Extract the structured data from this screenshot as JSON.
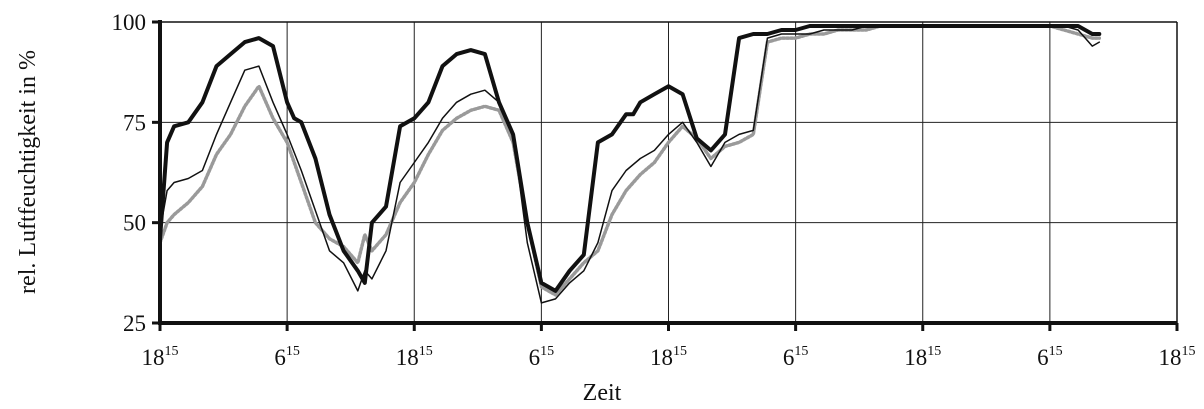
{
  "chart_data": {
    "type": "line",
    "xlabel": "Zeit",
    "ylabel": "rel. Luftfeuchtigkeit in %",
    "ylim": [
      25,
      100
    ],
    "yticks": [
      "25",
      "50",
      "75",
      "100"
    ],
    "xlim": [
      0,
      72
    ],
    "xticks": [
      {
        "main": "18",
        "sup": "15"
      },
      {
        "main": "6",
        "sup": "15"
      },
      {
        "main": "18",
        "sup": "15"
      },
      {
        "main": "6",
        "sup": "15"
      },
      {
        "main": "18",
        "sup": "15"
      },
      {
        "main": "6",
        "sup": "15"
      },
      {
        "main": "18",
        "sup": "15"
      },
      {
        "main": "6",
        "sup": "15"
      },
      {
        "main": "18",
        "sup": "15"
      }
    ],
    "grid": true,
    "legend": "none",
    "series": [
      {
        "style": "thick",
        "color": "#111111",
        "x": [
          0,
          0.5,
          1,
          2,
          3,
          4,
          5,
          6,
          7,
          8,
          9,
          9.5,
          10,
          11,
          12,
          13,
          14,
          14.5,
          15,
          16,
          17,
          18,
          19,
          20,
          21,
          22,
          23,
          24,
          25,
          26,
          27,
          28,
          29,
          30,
          31,
          32,
          33,
          33.5,
          34,
          35,
          36,
          37,
          38,
          39,
          40,
          41,
          42,
          43,
          44,
          45,
          46,
          46.5,
          47,
          47.5,
          48,
          49,
          50,
          51,
          52,
          53,
          54,
          55,
          56,
          57,
          58,
          59,
          60,
          61,
          62,
          63,
          64,
          65,
          66,
          66.5
        ],
        "values": [
          46,
          70,
          74,
          75,
          80,
          89,
          92,
          95,
          96,
          94,
          80,
          76,
          75,
          66,
          52,
          43,
          38,
          35,
          50,
          54,
          74,
          76,
          80,
          89,
          92,
          93,
          92,
          80,
          72,
          50,
          35,
          33,
          38,
          42,
          70,
          72,
          77,
          77,
          80,
          82,
          84,
          82,
          71,
          68,
          72,
          96,
          97,
          97,
          98,
          98,
          99,
          99,
          99,
          99,
          99,
          99,
          99,
          99,
          99,
          99,
          99,
          99,
          99,
          99,
          99,
          99,
          99,
          99,
          99,
          99,
          99,
          99,
          97,
          97
        ]
      },
      {
        "style": "thin",
        "color": "#111111",
        "x": [
          0,
          0.5,
          1,
          2,
          3,
          4,
          5,
          6,
          7,
          8,
          9,
          10,
          11,
          12,
          13,
          14,
          14.5,
          15,
          16,
          17,
          18,
          19,
          20,
          21,
          22,
          23,
          24,
          25,
          26,
          27,
          28,
          29,
          30,
          31,
          32,
          33,
          34,
          35,
          36,
          37,
          38,
          39,
          40,
          41,
          42,
          43,
          44,
          45,
          46,
          47,
          48,
          49,
          50,
          51,
          52,
          53,
          54,
          55,
          56,
          57,
          58,
          59,
          60,
          61,
          62,
          63,
          64,
          65,
          66,
          66.5
        ],
        "values": [
          48,
          58,
          60,
          61,
          63,
          72,
          80,
          88,
          89,
          80,
          72,
          63,
          53,
          43,
          40,
          33,
          38,
          36,
          43,
          60,
          65,
          70,
          76,
          80,
          82,
          83,
          80,
          72,
          45,
          30,
          31,
          35,
          38,
          45,
          58,
          63,
          66,
          68,
          72,
          75,
          70,
          64,
          70,
          72,
          73,
          96,
          97,
          97,
          97,
          98,
          98,
          98,
          99,
          99,
          99,
          99,
          99,
          99,
          99,
          99,
          99,
          99,
          99,
          99,
          99,
          99,
          99,
          98,
          94,
          95
        ]
      },
      {
        "style": "dotted",
        "color": "#9a9a9a",
        "x": [
          0,
          0.5,
          1,
          2,
          3,
          4,
          5,
          6,
          7,
          8,
          9,
          10,
          11,
          12,
          13,
          14,
          14.5,
          15,
          16,
          17,
          18,
          19,
          20,
          21,
          22,
          23,
          24,
          25,
          26,
          27,
          28,
          29,
          30,
          31,
          32,
          33,
          34,
          35,
          36,
          37,
          38,
          39,
          40,
          41,
          42,
          43,
          44,
          45,
          46,
          47,
          48,
          49,
          50,
          51,
          52,
          53,
          54,
          55,
          56,
          57,
          58,
          59,
          60,
          61,
          62,
          63,
          64,
          65,
          66,
          66.5
        ],
        "values": [
          45,
          50,
          52,
          55,
          59,
          67,
          72,
          79,
          84,
          76,
          70,
          60,
          50,
          46,
          44,
          40,
          47,
          43,
          47,
          55,
          60,
          67,
          73,
          76,
          78,
          79,
          78,
          70,
          50,
          34,
          32,
          36,
          40,
          43,
          52,
          58,
          62,
          65,
          70,
          74,
          71,
          66,
          69,
          70,
          72,
          95,
          96,
          96,
          97,
          97,
          98,
          98,
          98,
          99,
          99,
          99,
          99,
          99,
          99,
          99,
          99,
          99,
          99,
          99,
          99,
          99,
          98,
          97,
          96,
          96
        ]
      }
    ]
  }
}
